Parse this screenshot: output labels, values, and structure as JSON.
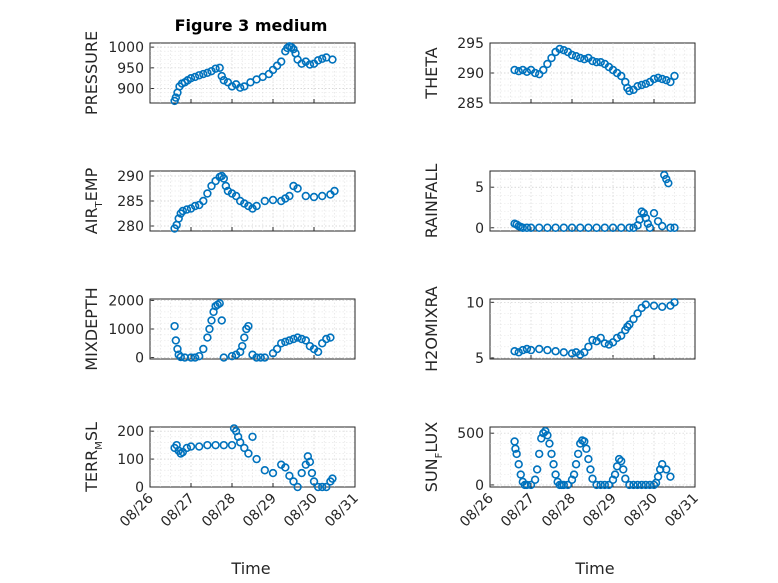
{
  "figure": {
    "title": "Figure 3 medium",
    "xlabel": "Time",
    "x_ticks": [
      "08/26",
      "08/27",
      "08/28",
      "08/29",
      "08/30",
      "08/31"
    ],
    "marker_color": "#0072BD"
  },
  "chart_data": [
    {
      "type": "scatter",
      "ylabel": "PRESSURE",
      "ylabel_sub": "",
      "ylabel_tail": "",
      "ylim": [
        865,
        1010
      ],
      "yticks": [
        900,
        950,
        1000
      ],
      "xlim": [
        26,
        31
      ],
      "x": [
        26.6,
        26.63,
        26.67,
        26.72,
        26.78,
        26.85,
        26.92,
        27.0,
        27.1,
        27.2,
        27.3,
        27.4,
        27.5,
        27.6,
        27.7,
        27.75,
        27.8,
        27.9,
        28.0,
        28.1,
        28.2,
        28.3,
        28.45,
        28.6,
        28.75,
        28.9,
        29.0,
        29.1,
        29.2,
        29.3,
        29.35,
        29.4,
        29.45,
        29.5,
        29.55,
        29.6,
        29.7,
        29.8,
        29.9,
        30.0,
        30.1,
        30.2,
        30.3,
        30.45
      ],
      "y": [
        870,
        878,
        890,
        905,
        912,
        915,
        920,
        925,
        928,
        932,
        935,
        938,
        942,
        948,
        950,
        930,
        920,
        915,
        905,
        910,
        902,
        905,
        915,
        922,
        928,
        935,
        945,
        955,
        965,
        990,
        998,
        1002,
        1000,
        995,
        985,
        970,
        960,
        965,
        958,
        960,
        968,
        972,
        975,
        970
      ]
    },
    {
      "type": "scatter",
      "ylabel": "THETA",
      "ylabel_sub": "",
      "ylabel_tail": "",
      "ylim": [
        285,
        295
      ],
      "yticks": [
        285,
        290,
        295
      ],
      "xlim": [
        26,
        31
      ],
      "x": [
        26.6,
        26.7,
        26.8,
        26.9,
        27.0,
        27.1,
        27.2,
        27.3,
        27.4,
        27.5,
        27.6,
        27.7,
        27.8,
        27.9,
        28.0,
        28.1,
        28.2,
        28.3,
        28.4,
        28.5,
        28.6,
        28.7,
        28.8,
        28.9,
        29.0,
        29.1,
        29.2,
        29.3,
        29.35,
        29.4,
        29.5,
        29.6,
        29.7,
        29.8,
        29.9,
        30.0,
        30.1,
        30.2,
        30.3,
        30.4,
        30.5
      ],
      "y": [
        290.5,
        290.3,
        290.5,
        290.2,
        290.5,
        290.0,
        289.8,
        290.5,
        291.5,
        292.5,
        293.5,
        294.0,
        293.8,
        293.5,
        293.0,
        292.8,
        292.5,
        292.3,
        292.5,
        292.0,
        291.8,
        291.8,
        291.5,
        291.0,
        290.5,
        290.0,
        289.5,
        288.5,
        287.5,
        287.0,
        287.2,
        287.8,
        288.0,
        288.2,
        288.5,
        289.0,
        289.2,
        289.0,
        288.8,
        288.5,
        289.5
      ]
    },
    {
      "type": "scatter",
      "ylabel": "AIR",
      "ylabel_sub": "T",
      "ylabel_tail": "EMP",
      "ylim": [
        279,
        291
      ],
      "yticks": [
        280,
        285,
        290
      ],
      "xlim": [
        26,
        31
      ],
      "x": [
        26.6,
        26.65,
        26.7,
        26.75,
        26.8,
        26.9,
        27.0,
        27.1,
        27.2,
        27.3,
        27.4,
        27.5,
        27.6,
        27.7,
        27.75,
        27.8,
        27.85,
        27.9,
        28.0,
        28.1,
        28.2,
        28.3,
        28.4,
        28.5,
        28.6,
        28.8,
        29.0,
        29.2,
        29.3,
        29.4,
        29.5,
        29.6,
        29.8,
        30.0,
        30.2,
        30.4,
        30.5
      ],
      "y": [
        279.5,
        280.2,
        281.5,
        282.5,
        283.0,
        283.3,
        283.5,
        284.0,
        284.2,
        285.0,
        286.5,
        288.0,
        289.0,
        289.8,
        290.0,
        289.5,
        288.0,
        287.0,
        286.5,
        286.0,
        285.0,
        284.5,
        284.0,
        283.5,
        284.0,
        285.0,
        285.2,
        285.0,
        285.5,
        286.0,
        288.0,
        287.5,
        286.0,
        285.8,
        286.0,
        286.3,
        287.0
      ]
    },
    {
      "type": "scatter",
      "ylabel": "RAINFALL",
      "ylabel_sub": "",
      "ylabel_tail": "",
      "ylim": [
        -0.4,
        7
      ],
      "yticks": [
        0,
        5
      ],
      "xlim": [
        26,
        31
      ],
      "x": [
        26.6,
        26.65,
        26.7,
        26.75,
        26.8,
        26.9,
        27.0,
        27.2,
        27.4,
        27.6,
        27.8,
        28.0,
        28.2,
        28.4,
        28.6,
        28.8,
        29.0,
        29.2,
        29.4,
        29.5,
        29.6,
        29.65,
        29.7,
        29.75,
        29.8,
        29.85,
        29.9,
        30.0,
        30.1,
        30.2,
        30.25,
        30.3,
        30.35,
        30.4,
        30.5
      ],
      "y": [
        0.5,
        0.4,
        0.2,
        0.1,
        0,
        0,
        0,
        0,
        0,
        0,
        0,
        0,
        0,
        0,
        0,
        0,
        0,
        0,
        0,
        0,
        0.3,
        1.0,
        2.0,
        1.8,
        1.2,
        0.5,
        0,
        1.8,
        0.8,
        0.2,
        6.5,
        6.0,
        5.5,
        0,
        0
      ]
    },
    {
      "type": "scatter",
      "ylabel": "MIXDEPTH",
      "ylabel_sub": "",
      "ylabel_tail": "",
      "ylim": [
        -50,
        2050
      ],
      "yticks": [
        0,
        1000,
        2000
      ],
      "xlim": [
        26,
        31
      ],
      "x": [
        26.6,
        26.63,
        26.67,
        26.7,
        26.75,
        26.85,
        27.0,
        27.1,
        27.2,
        27.3,
        27.4,
        27.45,
        27.5,
        27.55,
        27.6,
        27.65,
        27.7,
        27.75,
        27.8,
        28.0,
        28.1,
        28.2,
        28.25,
        28.3,
        28.35,
        28.4,
        28.5,
        28.6,
        28.7,
        28.8,
        29.0,
        29.1,
        29.2,
        29.3,
        29.4,
        29.5,
        29.6,
        29.7,
        29.8,
        29.9,
        30.0,
        30.1,
        30.2,
        30.3,
        30.4
      ],
      "y": [
        1100,
        600,
        300,
        100,
        20,
        0,
        0,
        0,
        50,
        300,
        700,
        1000,
        1300,
        1600,
        1800,
        1850,
        1900,
        1300,
        0,
        50,
        100,
        200,
        400,
        700,
        1000,
        1100,
        100,
        0,
        0,
        0,
        150,
        300,
        500,
        550,
        600,
        650,
        700,
        650,
        600,
        400,
        300,
        200,
        500,
        650,
        700
      ]
    },
    {
      "type": "scatter",
      "ylabel": "H2OMIXRA",
      "ylabel_sub": "",
      "ylabel_tail": "",
      "ylim": [
        4.9,
        10.3
      ],
      "yticks": [
        5,
        10
      ],
      "xlim": [
        26,
        31
      ],
      "x": [
        26.6,
        26.7,
        26.8,
        26.9,
        27.0,
        27.2,
        27.4,
        27.6,
        27.8,
        28.0,
        28.1,
        28.2,
        28.3,
        28.4,
        28.5,
        28.6,
        28.7,
        28.8,
        28.9,
        29.0,
        29.1,
        29.2,
        29.3,
        29.35,
        29.4,
        29.5,
        29.6,
        29.7,
        29.8,
        30.0,
        30.2,
        30.4,
        30.5
      ],
      "y": [
        5.6,
        5.5,
        5.7,
        5.8,
        5.7,
        5.8,
        5.7,
        5.6,
        5.5,
        5.4,
        5.5,
        5.3,
        5.5,
        6.0,
        6.6,
        6.5,
        6.8,
        6.3,
        6.2,
        6.4,
        6.8,
        7.0,
        7.5,
        7.8,
        8.0,
        8.5,
        9.0,
        9.5,
        9.8,
        9.7,
        9.6,
        9.7,
        10.0
      ]
    },
    {
      "type": "scatter",
      "ylabel": "TERR",
      "ylabel_sub": "M",
      "ylabel_tail": "SL",
      "ylim": [
        0,
        215
      ],
      "yticks": [
        0,
        100,
        200
      ],
      "xlim": [
        26,
        31
      ],
      "x": [
        26.6,
        26.65,
        26.7,
        26.75,
        26.8,
        26.9,
        27.0,
        27.2,
        27.4,
        27.6,
        27.8,
        28.0,
        28.05,
        28.1,
        28.15,
        28.2,
        28.3,
        28.4,
        28.5,
        28.6,
        28.8,
        29.0,
        29.2,
        29.3,
        29.4,
        29.5,
        29.6,
        29.7,
        29.8,
        29.85,
        29.9,
        29.95,
        30.0,
        30.1,
        30.2,
        30.3,
        30.4,
        30.45
      ],
      "y": [
        140,
        150,
        130,
        120,
        125,
        140,
        145,
        145,
        150,
        150,
        150,
        150,
        210,
        200,
        180,
        160,
        140,
        120,
        180,
        100,
        60,
        50,
        80,
        70,
        40,
        20,
        0,
        50,
        80,
        110,
        90,
        50,
        20,
        0,
        0,
        0,
        20,
        30
      ]
    },
    {
      "type": "scatter",
      "ylabel": "SUN",
      "ylabel_sub": "F",
      "ylabel_tail": "LUX",
      "ylim": [
        -20,
        560
      ],
      "yticks": [
        0,
        500
      ],
      "xlim": [
        26,
        31
      ],
      "x": [
        26.6,
        26.62,
        26.65,
        26.7,
        26.75,
        26.8,
        26.85,
        26.9,
        27.0,
        27.1,
        27.15,
        27.2,
        27.25,
        27.3,
        27.35,
        27.4,
        27.45,
        27.5,
        27.55,
        27.6,
        27.65,
        27.7,
        27.75,
        27.8,
        27.9,
        28.0,
        28.05,
        28.1,
        28.15,
        28.2,
        28.25,
        28.3,
        28.35,
        28.4,
        28.45,
        28.5,
        28.6,
        28.7,
        28.8,
        28.9,
        29.0,
        29.05,
        29.1,
        29.15,
        29.2,
        29.25,
        29.3,
        29.4,
        29.5,
        29.6,
        29.7,
        29.8,
        29.9,
        30.0,
        30.05,
        30.1,
        30.15,
        30.2,
        30.3,
        30.4
      ],
      "y": [
        420,
        350,
        300,
        200,
        100,
        30,
        0,
        0,
        0,
        50,
        150,
        300,
        450,
        500,
        520,
        480,
        400,
        300,
        200,
        100,
        30,
        0,
        0,
        0,
        0,
        50,
        100,
        200,
        300,
        400,
        430,
        420,
        350,
        250,
        150,
        60,
        0,
        0,
        0,
        0,
        50,
        100,
        180,
        250,
        230,
        150,
        60,
        0,
        0,
        0,
        0,
        0,
        0,
        0,
        20,
        80,
        150,
        200,
        150,
        80
      ]
    }
  ]
}
